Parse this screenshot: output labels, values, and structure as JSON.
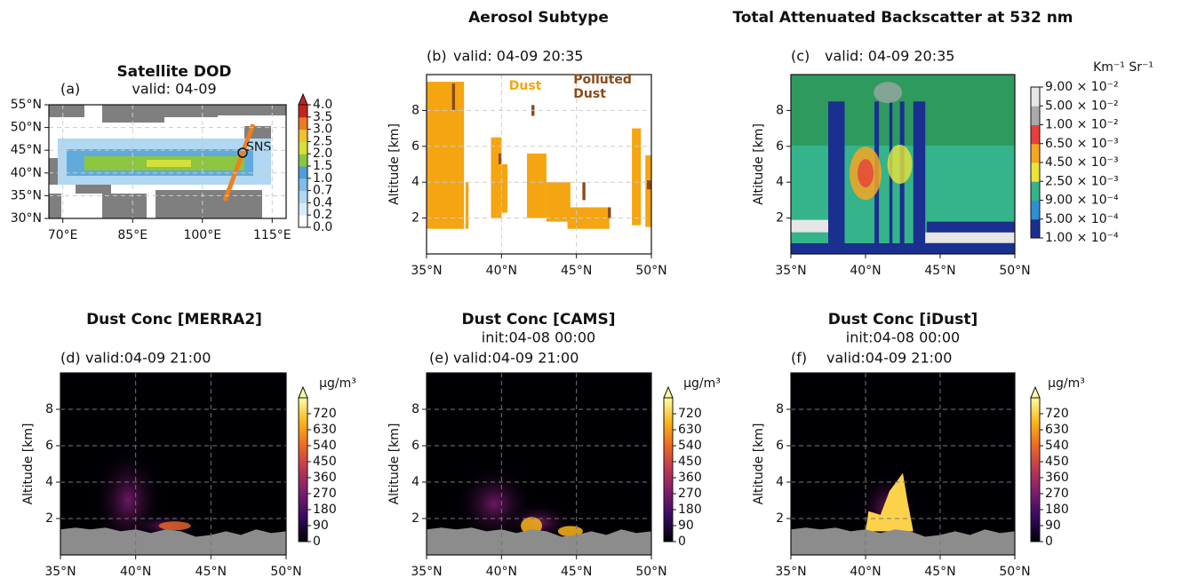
{
  "chart_data": [
    {
      "type": "map",
      "title": "Satellite DOD",
      "panel_label": "(a)",
      "subtitle": "valid: 04-09",
      "grid": true,
      "xlim": [
        67,
        118
      ],
      "xticks": [
        {
          "value": 70,
          "label": "70°E"
        },
        {
          "value": 85,
          "label": "85°E"
        },
        {
          "value": 100,
          "label": "100°E"
        },
        {
          "value": 115,
          "label": "115°E"
        }
      ],
      "ylim": [
        30,
        55
      ],
      "yticks": [
        {
          "value": 30,
          "label": "30°N"
        },
        {
          "value": 35,
          "label": "35°N"
        },
        {
          "value": 40,
          "label": "40°N"
        },
        {
          "value": 45,
          "label": "45°N"
        },
        {
          "value": 50,
          "label": "50°N"
        },
        {
          "value": 55,
          "label": "55°N"
        }
      ],
      "annotations": [
        "SNS"
      ],
      "colorbar": {
        "discrete": true,
        "extend": true,
        "colors": [
          "#ffffff",
          "#d8ecf8",
          "#b0d8f2",
          "#7fbde6",
          "#4e9fd6",
          "#8cc63f",
          "#d5e03a",
          "#f2c12e",
          "#ee7a23",
          "#c6231f"
        ],
        "ticks": [
          {
            "value": 0,
            "label": "0.0"
          },
          {
            "value": 0.2,
            "label": "0.2"
          },
          {
            "value": 0.4,
            "label": "0.4"
          },
          {
            "value": 0.7,
            "label": "0.7"
          },
          {
            "value": 1,
            "label": "1.0"
          },
          {
            "value": 1.5,
            "label": "1.5"
          },
          {
            "value": 2,
            "label": "2.0"
          },
          {
            "value": 2.5,
            "label": "2.5"
          },
          {
            "value": 3,
            "label": "3.0"
          },
          {
            "value": 3.5,
            "label": "3.5"
          },
          {
            "value": 4,
            "label": "4.0"
          }
        ]
      }
    },
    {
      "type": "subtype",
      "title": "Aerosol Subtype",
      "panel_label": "(b)",
      "subtitle": "valid: 04-09 20:35",
      "ylabel": "Altitude [km]",
      "grid": true,
      "xlim": [
        35,
        50
      ],
      "xticks": [
        {
          "value": 35,
          "label": "35°N"
        },
        {
          "value": 40,
          "label": "40°N"
        },
        {
          "value": 45,
          "label": "45°N"
        },
        {
          "value": 50,
          "label": "50°N"
        }
      ],
      "ylim": [
        0,
        10
      ],
      "yticks": [
        2,
        4,
        6,
        8
      ],
      "classes": [
        {
          "name": "Dust",
          "color": "#f5a511"
        },
        {
          "name": "Polluted Dust",
          "color": "#8b4a16"
        }
      ]
    },
    {
      "type": "backscatter",
      "title": "Total Attenuated Backscatter at 532 nm",
      "panel_label": "(c)",
      "subtitle": "valid: 04-09 20:35",
      "ylabel": "Altitude [km]",
      "grid": false,
      "xlim": [
        35,
        50
      ],
      "xticks": [
        {
          "value": 35,
          "label": "35°N"
        },
        {
          "value": 40,
          "label": "40°N"
        },
        {
          "value": 45,
          "label": "45°N"
        },
        {
          "value": 50,
          "label": "50°N"
        }
      ],
      "ylim": [
        0,
        10
      ],
      "yticks": [
        2,
        4,
        6,
        8
      ],
      "colorbar": {
        "discrete": true,
        "extend": false,
        "units": "Km⁻¹ Sr⁻¹",
        "colors": [
          "#1a2f8f",
          "#2f8fd4",
          "#35b38a",
          "#e9e53a",
          "#f5a623",
          "#e8403a",
          "#aaaaaa",
          "#e6e6e6"
        ],
        "ticks": [
          {
            "value": 0.0001,
            "label": "1.00 × 10⁻⁴"
          },
          {
            "value": 0.0005,
            "label": "5.00 × 10⁻⁴"
          },
          {
            "value": 0.0009,
            "label": "9.00 × 10⁻⁴"
          },
          {
            "value": 0.0025,
            "label": "2.50 × 10⁻³"
          },
          {
            "value": 0.0045,
            "label": "4.50 × 10⁻³"
          },
          {
            "value": 0.0065,
            "label": "6.50 × 10⁻³"
          },
          {
            "value": 0.01,
            "label": "1.00 × 10⁻²"
          },
          {
            "value": 0.05,
            "label": "5.00 × 10⁻²"
          },
          {
            "value": 0.09,
            "label": "9.00 × 10⁻²"
          }
        ]
      }
    },
    {
      "type": "conc",
      "title": "Dust Conc [MERRA2]",
      "panel_label": "(d)",
      "subtitle": "valid:04-09 21:00",
      "ylabel": "Altitude [km]",
      "grid": true,
      "xlim": [
        35,
        50
      ],
      "xticks": [
        {
          "value": 35,
          "label": "35°N"
        },
        {
          "value": 40,
          "label": "40°N"
        },
        {
          "value": 45,
          "label": "45°N"
        },
        {
          "value": 50,
          "label": "50°N"
        }
      ],
      "ylim": [
        0,
        10
      ],
      "yticks": [
        2,
        4,
        6,
        8
      ],
      "colorbar": {
        "discrete": false,
        "extend": true,
        "units": "μg/m³",
        "clim": [
          0,
          810
        ],
        "colors": [
          "#000004",
          "#320a5e",
          "#781c6d",
          "#bb3754",
          "#ed6925",
          "#fbb61a",
          "#fcffa4"
        ],
        "ticks": [
          0,
          90,
          180,
          270,
          360,
          450,
          540,
          630,
          720
        ]
      }
    },
    {
      "type": "conc",
      "title": "Dust Conc [CAMS]",
      "init": "init:04-08 00:00",
      "panel_label": "(e)",
      "subtitle": "valid:04-09 21:00",
      "ylabel": "Altitude [km]",
      "grid": true,
      "xlim": [
        35,
        50
      ],
      "xticks": [
        {
          "value": 35,
          "label": "35°N"
        },
        {
          "value": 40,
          "label": "40°N"
        },
        {
          "value": 45,
          "label": "45°N"
        },
        {
          "value": 50,
          "label": "50°N"
        }
      ],
      "ylim": [
        0,
        10
      ],
      "yticks": [
        2,
        4,
        6,
        8
      ],
      "colorbar": {
        "discrete": false,
        "extend": true,
        "units": "μg/m³",
        "clim": [
          0,
          810
        ],
        "colors": [
          "#000004",
          "#320a5e",
          "#781c6d",
          "#bb3754",
          "#ed6925",
          "#fbb61a",
          "#fcffa4"
        ],
        "ticks": [
          0,
          90,
          180,
          270,
          360,
          450,
          540,
          630,
          720
        ]
      }
    },
    {
      "type": "conc",
      "title": "Dust Conc [iDust]",
      "init": "init:04-08 00:00",
      "panel_label": "(f)",
      "subtitle": "valid:04-09 21:00",
      "ylabel": "Altitude [km]",
      "grid": true,
      "xlim": [
        35,
        50
      ],
      "xticks": [
        {
          "value": 35,
          "label": "35°N"
        },
        {
          "value": 40,
          "label": "40°N"
        },
        {
          "value": 45,
          "label": "45°N"
        },
        {
          "value": 50,
          "label": "50°N"
        }
      ],
      "ylim": [
        0,
        10
      ],
      "yticks": [
        2,
        4,
        6,
        8
      ],
      "colorbar": {
        "discrete": false,
        "extend": true,
        "units": "μg/m³",
        "clim": [
          0,
          810
        ],
        "colors": [
          "#000004",
          "#320a5e",
          "#781c6d",
          "#bb3754",
          "#ed6925",
          "#fbb61a",
          "#fcffa4"
        ],
        "ticks": [
          0,
          90,
          180,
          270,
          360,
          450,
          540,
          630,
          720
        ]
      }
    }
  ]
}
